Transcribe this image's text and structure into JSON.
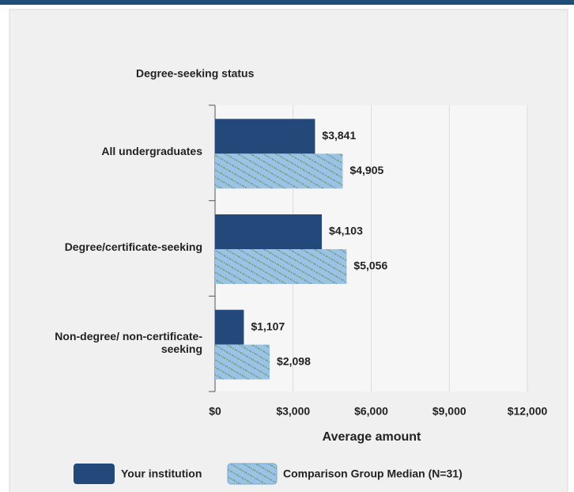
{
  "chart_data": {
    "type": "bar",
    "orientation": "horizontal",
    "title": "Degree-seeking status",
    "categories": [
      "All undergraduates",
      "Degree/certificate-seeking",
      "Non-degree/ non-certificate-seeking"
    ],
    "series": [
      {
        "name": "Your institution",
        "color": "#23497a",
        "values": [
          3841,
          4103,
          1107
        ],
        "value_labels": [
          "$3,841",
          "$4,103",
          "$1,107"
        ]
      },
      {
        "name": "Comparison Group Median (N=31)",
        "color": "#9cc2e5",
        "hatch": true,
        "values": [
          4905,
          5056,
          2098
        ],
        "value_labels": [
          "$4,905",
          "$5,056",
          "$2,098"
        ]
      }
    ],
    "xlabel": "Average amount",
    "xlim": [
      0,
      12000
    ],
    "xticks": [
      {
        "value": 0,
        "label": "$0"
      },
      {
        "value": 3000,
        "label": "$3,000"
      },
      {
        "value": 6000,
        "label": "$6,000"
      },
      {
        "value": 9000,
        "label": "$9,000"
      },
      {
        "value": 12000,
        "label": "$12,000"
      }
    ],
    "grid": true,
    "legend": "bottom"
  }
}
